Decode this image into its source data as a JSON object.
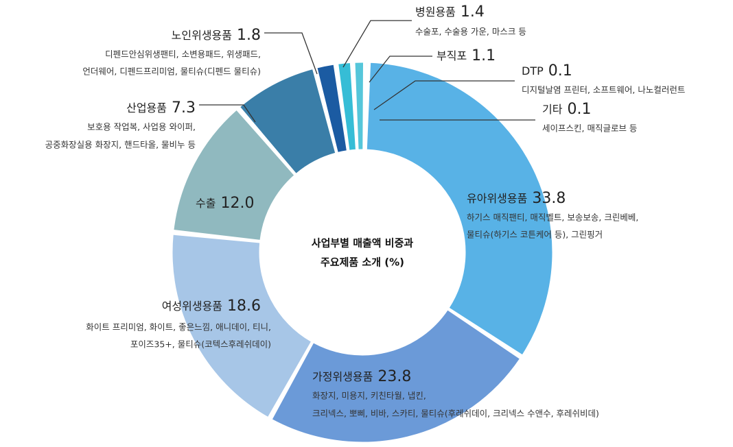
{
  "chart_data": {
    "type": "pie",
    "donut": true,
    "title": [
      "사업부별 매출액 비중과",
      "주요제품 소개 (%)"
    ],
    "categories": [
      "병원용품",
      "부직포",
      "DTP",
      "기타",
      "유아위생용품",
      "가정위생용품",
      "여성위생용품",
      "수출",
      "산업용품",
      "노인위생용품"
    ],
    "values": [
      1.4,
      1.1,
      0.1,
      0.1,
      33.8,
      23.8,
      18.6,
      12.0,
      7.3,
      1.8
    ],
    "value_labels": [
      "1.4",
      "1.1",
      "0.1",
      "0.1",
      "33.8",
      "23.8",
      "18.6",
      "12.0",
      "7.3",
      "1.8"
    ],
    "colors": [
      "#36bdd6",
      "#55c6da",
      "#7d9ed9",
      "#a9bfea",
      "#58b2e6",
      "#6b9ad8",
      "#a7c6e7",
      "#90b9bf",
      "#3a7ea8",
      "#1b5ba2"
    ],
    "descriptions": [
      [
        "수술포, 수술용 가운, 마스크 등"
      ],
      [],
      [
        "디지털날염 프린터, 소프트웨어, 나노컬러런트"
      ],
      [
        "세이프스킨, 매직글로브 등"
      ],
      [
        "하기스 매직팬티, 매직벨트, 보송보송, 크린베베,",
        "물티슈(하기스 코튼케어 등), 그린핑거"
      ],
      [
        "화장지, 미용지, 키친타월, 냅킨,",
        "크리넥스, 뽀삐, 비바, 스카티, 물티슈(후레쉬데이, 크리넥스 수앤수, 후레쉬비데)"
      ],
      [
        "화이트 프리미엄, 화이트, 좋은느낌, 애니데이, 티니,",
        "포이즈35+, 물티슈(코텍스후레쉬데이)"
      ],
      [],
      [
        "보호용 작업복, 사업용 와이퍼,",
        "공중화장실용 화장지, 핸드타올, 물비누 등"
      ],
      [
        "디펜드안심위생팬티, 소변용패드, 위생패드,",
        "언더웨어, 디펜드프리미엄, 물티슈(디펜드 물티슈)"
      ]
    ]
  }
}
